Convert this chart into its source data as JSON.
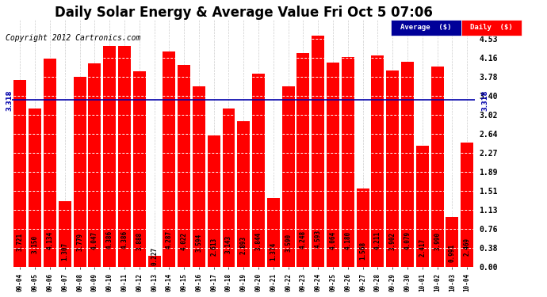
{
  "title": "Daily Solar Energy & Average Value Fri Oct 5 07:06",
  "copyright": "Copyright 2012 Cartronics.com",
  "average_value": 3.318,
  "average_label": "3.318",
  "categories": [
    "09-04",
    "09-05",
    "09-06",
    "09-07",
    "09-08",
    "09-09",
    "09-10",
    "09-11",
    "09-12",
    "09-13",
    "09-14",
    "09-15",
    "09-16",
    "09-17",
    "09-18",
    "09-19",
    "09-20",
    "09-21",
    "09-22",
    "09-23",
    "09-24",
    "09-25",
    "09-26",
    "09-27",
    "09-28",
    "09-29",
    "09-30",
    "10-01",
    "10-02",
    "10-03",
    "10-04"
  ],
  "values": [
    3.721,
    3.15,
    4.134,
    1.307,
    3.779,
    4.047,
    4.386,
    4.386,
    3.888,
    0.227,
    4.287,
    4.022,
    3.594,
    2.613,
    3.143,
    2.893,
    3.844,
    1.374,
    3.59,
    4.248,
    4.593,
    4.064,
    4.18,
    1.568,
    4.211,
    3.902,
    4.079,
    2.417,
    3.99,
    0.991,
    2.469
  ],
  "bar_color": "#FF0000",
  "avg_line_color": "#0000AA",
  "background_color": "#FFFFFF",
  "plot_bg_color": "#FFFFFF",
  "ylim": [
    0,
    4.91
  ],
  "yticks": [
    0.0,
    0.38,
    0.76,
    1.13,
    1.51,
    1.89,
    2.27,
    2.64,
    3.02,
    3.4,
    3.78,
    4.16,
    4.53
  ],
  "legend_avg_color": "#000099",
  "legend_daily_color": "#FF0000",
  "title_fontsize": 12,
  "copyright_fontsize": 7,
  "label_fontsize": 5.5,
  "tick_fontsize": 7,
  "xtick_fontsize": 5.5
}
